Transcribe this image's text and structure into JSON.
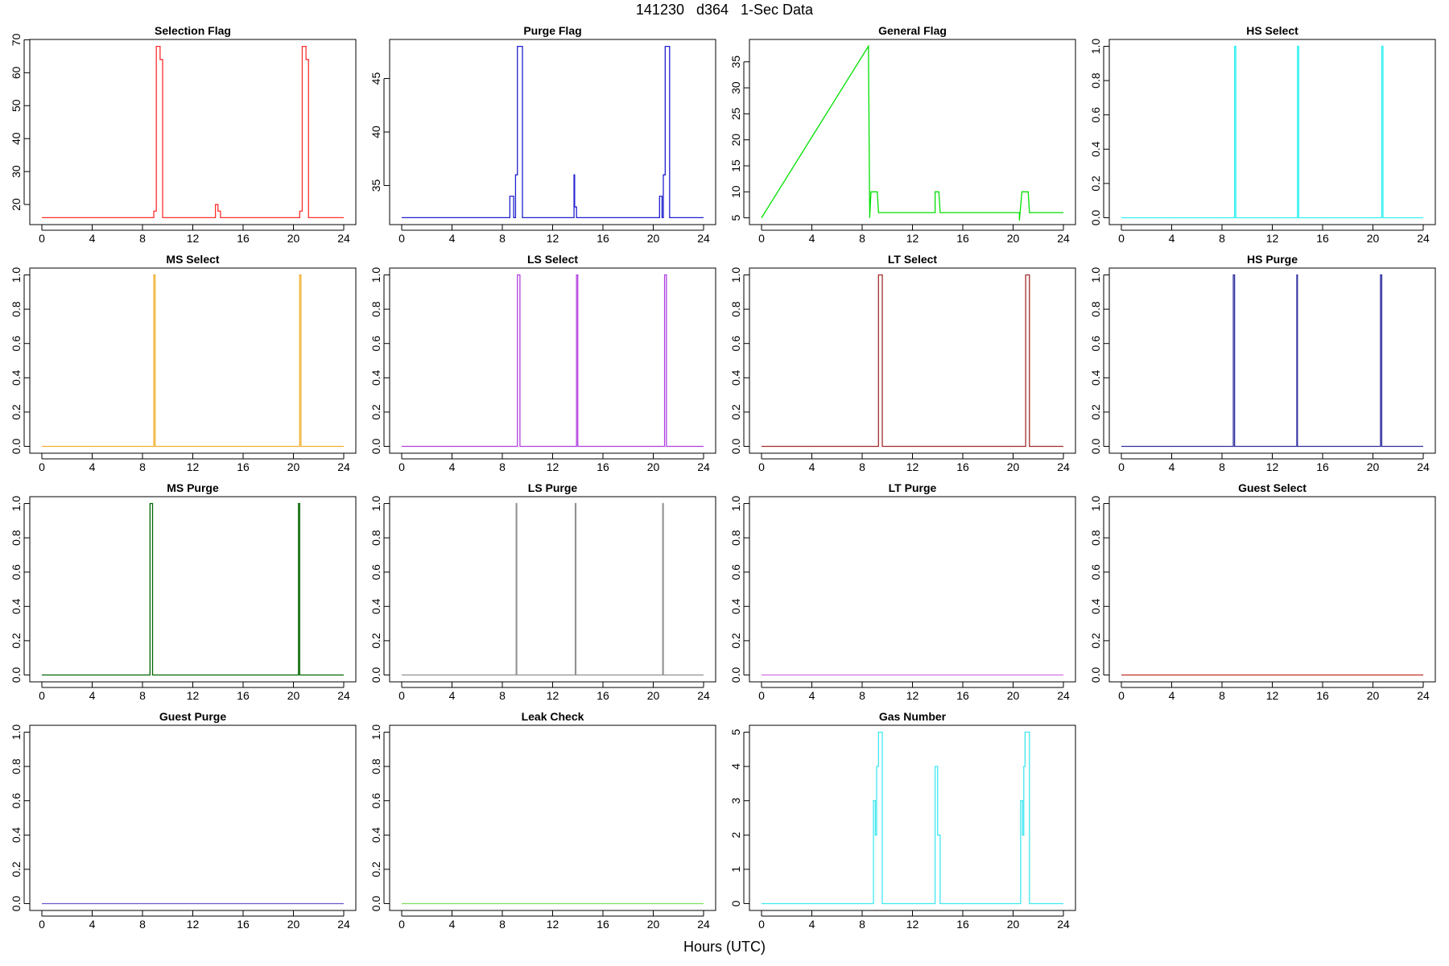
{
  "title": "141230   d364   1-Sec Data",
  "x_label": "Hours (UTC)",
  "chart_data": [
    {
      "type": "line",
      "title": "Selection Flag",
      "x": [
        0,
        8.9,
        8.9,
        9.1,
        9.1,
        9.4,
        9.4,
        9.6,
        9.6,
        13.8,
        13.8,
        14.0,
        14.0,
        14.2,
        14.2,
        20.5,
        20.5,
        20.7,
        20.7,
        21.0,
        21.0,
        21.2,
        21.2,
        24
      ],
      "series": [
        {
          "color": "#ff3030",
          "values": [
            16,
            16,
            18,
            18,
            68,
            68,
            64,
            64,
            16,
            16,
            20,
            20,
            18,
            18,
            16,
            16,
            18,
            18,
            68,
            68,
            64,
            64,
            16,
            16
          ]
        }
      ],
      "xlim": [
        -0.96,
        24.96
      ],
      "ylim": [
        13.9,
        70.1
      ],
      "xticks": [
        0,
        4,
        8,
        12,
        16,
        20,
        24
      ],
      "yticks": [
        20,
        30,
        40,
        50,
        60,
        70
      ]
    },
    {
      "type": "line",
      "title": "Purge Flag",
      "x": [
        0,
        8.6,
        8.6,
        8.9,
        8.9,
        9.05,
        9.05,
        9.2,
        9.2,
        9.6,
        9.6,
        13.7,
        13.7,
        13.75,
        13.75,
        13.9,
        13.9,
        20.5,
        20.5,
        20.7,
        20.7,
        20.8,
        20.8,
        20.95,
        20.95,
        21.3,
        21.3,
        24
      ],
      "series": [
        {
          "color": "#2020d0",
          "values": [
            32,
            32,
            34,
            34,
            32,
            32,
            36,
            36,
            48,
            48,
            32,
            32,
            36,
            36,
            33,
            33,
            32,
            32,
            34,
            34,
            32,
            32,
            36,
            36,
            48,
            48,
            32,
            32
          ]
        }
      ],
      "xlim": [
        -0.96,
        24.96
      ],
      "ylim": [
        31.35,
        48.65
      ],
      "xticks": [
        0,
        4,
        8,
        12,
        16,
        20,
        24
      ],
      "yticks": [
        35,
        40,
        45
      ]
    },
    {
      "type": "line",
      "title": "General Flag",
      "x": [
        0,
        8.5,
        8.6,
        8.7,
        9.2,
        9.3,
        13.8,
        13.8,
        14.1,
        14.2,
        18.0,
        20.5,
        20.5,
        20.7,
        21.2,
        21.3,
        24
      ],
      "series": [
        {
          "color": "#00e000",
          "values": [
            5,
            38,
            5,
            10,
            10,
            6,
            6,
            10,
            10,
            6,
            6,
            6,
            4.5,
            10,
            10,
            6,
            6
          ]
        }
      ],
      "xlim": [
        -0.96,
        24.96
      ],
      "ylim": [
        3.7,
        39.3
      ],
      "xticks": [
        0,
        4,
        8,
        12,
        16,
        20,
        24
      ],
      "yticks": [
        5,
        10,
        15,
        20,
        25,
        30,
        35
      ]
    },
    {
      "type": "line",
      "title": "HS Select",
      "x": [
        0,
        9.0,
        9.0,
        9.1,
        9.1,
        14.0,
        14.0,
        14.1,
        14.1,
        20.7,
        20.7,
        20.8,
        20.8,
        24
      ],
      "series": [
        {
          "color": "#30f0f0",
          "values": [
            0,
            0,
            1,
            1,
            0,
            0,
            1,
            1,
            0,
            0,
            1,
            1,
            0,
            0
          ]
        }
      ],
      "xlim": [
        -0.96,
        24.96
      ],
      "ylim": [
        -0.04,
        1.04
      ],
      "xticks": [
        0,
        4,
        8,
        12,
        16,
        20,
        24
      ],
      "yticks": [
        {
          "value": 0,
          "label": "0.0"
        },
        {
          "value": 0.2,
          "label": "0.2"
        },
        {
          "value": 0.4,
          "label": "0.4"
        },
        {
          "value": 0.6,
          "label": "0.6"
        },
        {
          "value": 0.8,
          "label": "0.8"
        },
        {
          "value": 1,
          "label": "1.0"
        }
      ]
    },
    {
      "type": "line",
      "title": "MS Select",
      "x": [
        0,
        8.9,
        8.9,
        9.0,
        9.0,
        20.5,
        20.5,
        20.6,
        20.6,
        24
      ],
      "series": [
        {
          "color": "#f0b030",
          "values": [
            0,
            0,
            1,
            1,
            0,
            0,
            1,
            1,
            0,
            0
          ]
        }
      ],
      "xlim": [
        -0.96,
        24.96
      ],
      "ylim": [
        -0.04,
        1.04
      ],
      "xticks": [
        0,
        4,
        8,
        12,
        16,
        20,
        24
      ],
      "yticks": [
        {
          "value": 0,
          "label": "0.0"
        },
        {
          "value": 0.2,
          "label": "0.2"
        },
        {
          "value": 0.4,
          "label": "0.4"
        },
        {
          "value": 0.6,
          "label": "0.6"
        },
        {
          "value": 0.8,
          "label": "0.8"
        },
        {
          "value": 1,
          "label": "1.0"
        }
      ]
    },
    {
      "type": "line",
      "title": "LS Select",
      "x": [
        0,
        9.2,
        9.2,
        9.4,
        9.4,
        13.9,
        13.9,
        14.0,
        14.0,
        20.9,
        20.9,
        21.05,
        21.05,
        24
      ],
      "series": [
        {
          "color": "#b040e0",
          "values": [
            0,
            0,
            1,
            1,
            0,
            0,
            1,
            1,
            0,
            0,
            1,
            1,
            0,
            0
          ]
        }
      ],
      "xlim": [
        -0.96,
        24.96
      ],
      "ylim": [
        -0.04,
        1.04
      ],
      "xticks": [
        0,
        4,
        8,
        12,
        16,
        20,
        24
      ],
      "yticks": [
        {
          "value": 0,
          "label": "0.0"
        },
        {
          "value": 0.2,
          "label": "0.2"
        },
        {
          "value": 0.4,
          "label": "0.4"
        },
        {
          "value": 0.6,
          "label": "0.6"
        },
        {
          "value": 0.8,
          "label": "0.8"
        },
        {
          "value": 1,
          "label": "1.0"
        }
      ]
    },
    {
      "type": "line",
      "title": "LT Select",
      "x": [
        0,
        9.3,
        9.3,
        9.6,
        9.6,
        21.0,
        21.0,
        21.3,
        21.3,
        24
      ],
      "series": [
        {
          "color": "#a52a2a",
          "values": [
            0,
            0,
            1,
            1,
            0,
            0,
            1,
            1,
            0,
            0
          ]
        }
      ],
      "xlim": [
        -0.96,
        24.96
      ],
      "ylim": [
        -0.04,
        1.04
      ],
      "xticks": [
        0,
        4,
        8,
        12,
        16,
        20,
        24
      ],
      "yticks": [
        {
          "value": 0,
          "label": "0.0"
        },
        {
          "value": 0.2,
          "label": "0.2"
        },
        {
          "value": 0.4,
          "label": "0.4"
        },
        {
          "value": 0.6,
          "label": "0.6"
        },
        {
          "value": 0.8,
          "label": "0.8"
        },
        {
          "value": 1,
          "label": "1.0"
        }
      ]
    },
    {
      "type": "line",
      "title": "HS Purge",
      "x": [
        0,
        8.9,
        8.9,
        9.0,
        9.0,
        13.95,
        13.95,
        14.0,
        14.0,
        20.6,
        20.6,
        20.7,
        20.7,
        24
      ],
      "series": [
        {
          "color": "#3030a0",
          "values": [
            0,
            0,
            1,
            1,
            0,
            0,
            1,
            1,
            0,
            0,
            1,
            1,
            0,
            0
          ]
        }
      ],
      "xlim": [
        -0.96,
        24.96
      ],
      "ylim": [
        -0.04,
        1.04
      ],
      "xticks": [
        0,
        4,
        8,
        12,
        16,
        20,
        24
      ],
      "yticks": [
        {
          "value": 0,
          "label": "0.0"
        },
        {
          "value": 0.2,
          "label": "0.2"
        },
        {
          "value": 0.4,
          "label": "0.4"
        },
        {
          "value": 0.6,
          "label": "0.6"
        },
        {
          "value": 0.8,
          "label": "0.8"
        },
        {
          "value": 1,
          "label": "1.0"
        }
      ]
    },
    {
      "type": "line",
      "title": "MS Purge",
      "x": [
        0,
        8.6,
        8.6,
        8.8,
        8.8,
        20.4,
        20.4,
        20.5,
        20.5,
        24
      ],
      "series": [
        {
          "color": "#006400",
          "values": [
            0,
            0,
            1,
            1,
            0,
            0,
            1,
            1,
            0,
            0
          ]
        }
      ],
      "xlim": [
        -0.96,
        24.96
      ],
      "ylim": [
        -0.04,
        1.04
      ],
      "xticks": [
        0,
        4,
        8,
        12,
        16,
        20,
        24
      ],
      "yticks": [
        {
          "value": 0,
          "label": "0.0"
        },
        {
          "value": 0.2,
          "label": "0.2"
        },
        {
          "value": 0.4,
          "label": "0.4"
        },
        {
          "value": 0.6,
          "label": "0.6"
        },
        {
          "value": 0.8,
          "label": "0.8"
        },
        {
          "value": 1,
          "label": "1.0"
        }
      ]
    },
    {
      "type": "line",
      "title": "LS Purge",
      "x": [
        0,
        9.1,
        9.1,
        9.15,
        9.15,
        13.8,
        13.8,
        13.85,
        13.85,
        20.75,
        20.75,
        20.8,
        20.8,
        24
      ],
      "series": [
        {
          "color": "#909090",
          "values": [
            0,
            0,
            1,
            1,
            0,
            0,
            1,
            1,
            0,
            0,
            1,
            1,
            0,
            0
          ]
        }
      ],
      "xlim": [
        -0.96,
        24.96
      ],
      "ylim": [
        -0.04,
        1.04
      ],
      "xticks": [
        0,
        4,
        8,
        12,
        16,
        20,
        24
      ],
      "yticks": [
        {
          "value": 0,
          "label": "0.0"
        },
        {
          "value": 0.2,
          "label": "0.2"
        },
        {
          "value": 0.4,
          "label": "0.4"
        },
        {
          "value": 0.6,
          "label": "0.6"
        },
        {
          "value": 0.8,
          "label": "0.8"
        },
        {
          "value": 1,
          "label": "1.0"
        }
      ]
    },
    {
      "type": "line",
      "title": "LT Purge",
      "x": [
        0,
        24
      ],
      "series": [
        {
          "color": "#d070e0",
          "values": [
            0,
            0
          ]
        }
      ],
      "xlim": [
        -0.96,
        24.96
      ],
      "ylim": [
        -0.04,
        1.04
      ],
      "xticks": [
        0,
        4,
        8,
        12,
        16,
        20,
        24
      ],
      "yticks": [
        {
          "value": 0,
          "label": "0.0"
        },
        {
          "value": 0.2,
          "label": "0.2"
        },
        {
          "value": 0.4,
          "label": "0.4"
        },
        {
          "value": 0.6,
          "label": "0.6"
        },
        {
          "value": 0.8,
          "label": "0.8"
        },
        {
          "value": 1,
          "label": "1.0"
        }
      ]
    },
    {
      "type": "line",
      "title": "Guest Select",
      "x": [
        0,
        24
      ],
      "series": [
        {
          "color": "#c03020",
          "values": [
            0,
            0
          ]
        }
      ],
      "xlim": [
        -0.96,
        24.96
      ],
      "ylim": [
        -0.04,
        1.04
      ],
      "xticks": [
        0,
        4,
        8,
        12,
        16,
        20,
        24
      ],
      "yticks": [
        {
          "value": 0,
          "label": "0.0"
        },
        {
          "value": 0.2,
          "label": "0.2"
        },
        {
          "value": 0.4,
          "label": "0.4"
        },
        {
          "value": 0.6,
          "label": "0.6"
        },
        {
          "value": 0.8,
          "label": "0.8"
        },
        {
          "value": 1,
          "label": "1.0"
        }
      ]
    },
    {
      "type": "line",
      "title": "Guest Purge",
      "x": [
        0,
        24
      ],
      "series": [
        {
          "color": "#6a5acd",
          "values": [
            0,
            0
          ]
        }
      ],
      "xlim": [
        -0.96,
        24.96
      ],
      "ylim": [
        -0.04,
        1.04
      ],
      "xticks": [
        0,
        4,
        8,
        12,
        16,
        20,
        24
      ],
      "yticks": [
        {
          "value": 0,
          "label": "0.0"
        },
        {
          "value": 0.2,
          "label": "0.2"
        },
        {
          "value": 0.4,
          "label": "0.4"
        },
        {
          "value": 0.6,
          "label": "0.6"
        },
        {
          "value": 0.8,
          "label": "0.8"
        },
        {
          "value": 1,
          "label": "1.0"
        }
      ]
    },
    {
      "type": "line",
      "title": "Leak Check",
      "x": [
        0,
        24
      ],
      "series": [
        {
          "color": "#7fdf5f",
          "values": [
            0,
            0
          ]
        }
      ],
      "xlim": [
        -0.96,
        24.96
      ],
      "ylim": [
        -0.04,
        1.04
      ],
      "xticks": [
        0,
        4,
        8,
        12,
        16,
        20,
        24
      ],
      "yticks": [
        {
          "value": 0,
          "label": "0.0"
        },
        {
          "value": 0.2,
          "label": "0.2"
        },
        {
          "value": 0.4,
          "label": "0.4"
        },
        {
          "value": 0.6,
          "label": "0.6"
        },
        {
          "value": 0.8,
          "label": "0.8"
        },
        {
          "value": 1,
          "label": "1.0"
        }
      ]
    },
    {
      "type": "line",
      "title": "Gas Number",
      "x": [
        0,
        8.9,
        8.9,
        9.05,
        9.05,
        9.15,
        9.15,
        9.3,
        9.3,
        9.6,
        9.6,
        13.8,
        13.8,
        14.0,
        14.0,
        14.2,
        14.2,
        20.6,
        20.6,
        20.75,
        20.75,
        20.85,
        20.85,
        20.95,
        20.95,
        21.3,
        21.3,
        24
      ],
      "series": [
        {
          "color": "#40e8f0",
          "values": [
            0,
            0,
            3,
            3,
            2,
            2,
            4,
            4,
            5,
            5,
            0,
            0,
            4,
            4,
            2,
            2,
            0,
            0,
            3,
            3,
            2,
            2,
            4,
            4,
            5,
            5,
            0,
            0
          ]
        }
      ],
      "xlim": [
        -0.96,
        24.96
      ],
      "ylim": [
        -0.2,
        5.2
      ],
      "xticks": [
        0,
        4,
        8,
        12,
        16,
        20,
        24
      ],
      "yticks": [
        0,
        1,
        2,
        3,
        4,
        5
      ]
    }
  ]
}
